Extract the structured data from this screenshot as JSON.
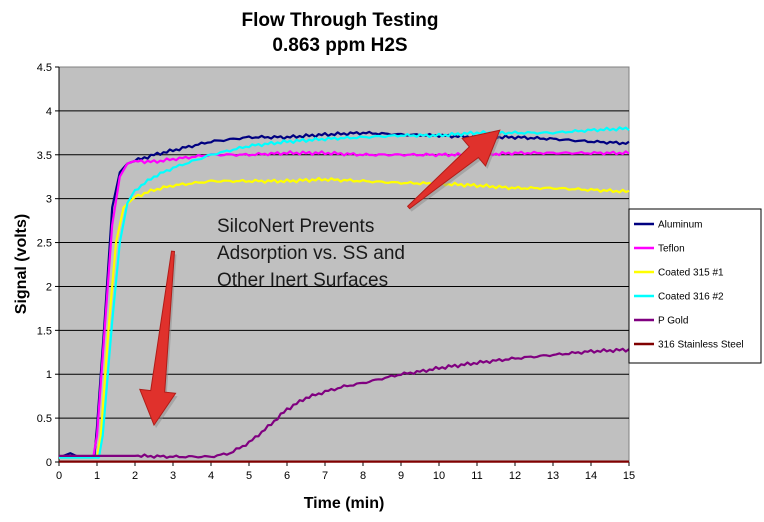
{
  "chart_data": {
    "type": "line",
    "title": "Flow Through Testing",
    "subtitle": "0.863 ppm H2S",
    "xlabel": "Time (min)",
    "ylabel": "Signal (volts)",
    "xlim": [
      0,
      15
    ],
    "ylim": [
      0,
      4.5
    ],
    "x_ticks": [
      "0",
      "1",
      "2",
      "3",
      "4",
      "5",
      "6",
      "7",
      "8",
      "9",
      "10",
      "11",
      "12",
      "13",
      "14",
      "15"
    ],
    "y_ticks": [
      "0",
      "0.5",
      "1",
      "1.5",
      "2",
      "2.5",
      "3",
      "3.5",
      "4",
      "4.5"
    ],
    "grid": true,
    "plot_background": "#c0c0c0",
    "legend_position": "right",
    "annotations": [
      {
        "lines": [
          "SilcoNert Prevents",
          "Adsorption vs. SS and",
          "Other Inert Surfaces"
        ]
      }
    ],
    "arrows": [
      {
        "from": [
          3.0,
          2.4
        ],
        "to": [
          2.5,
          0.42
        ],
        "color": "#e0312c"
      },
      {
        "from": [
          9.2,
          2.9
        ],
        "to": [
          11.6,
          3.78
        ],
        "color": "#e0312c"
      }
    ],
    "series": [
      {
        "name": "Aluminum",
        "color": "#000080",
        "points": [
          [
            0,
            0.05
          ],
          [
            0.3,
            0.1
          ],
          [
            0.5,
            0.06
          ],
          [
            0.93,
            0.06
          ],
          [
            1.0,
            0.4
          ],
          [
            1.2,
            1.6
          ],
          [
            1.4,
            2.9
          ],
          [
            1.6,
            3.3
          ],
          [
            1.8,
            3.4
          ],
          [
            2.0,
            3.43
          ],
          [
            2.5,
            3.5
          ],
          [
            3,
            3.55
          ],
          [
            4,
            3.65
          ],
          [
            5,
            3.7
          ],
          [
            6,
            3.7
          ],
          [
            7,
            3.73
          ],
          [
            8,
            3.75
          ],
          [
            9,
            3.73
          ],
          [
            10,
            3.72
          ],
          [
            11,
            3.7
          ],
          [
            12,
            3.7
          ],
          [
            13,
            3.68
          ],
          [
            14,
            3.65
          ],
          [
            15,
            3.63
          ]
        ]
      },
      {
        "name": "Teflon",
        "color": "#ff00ff",
        "points": [
          [
            0,
            0.05
          ],
          [
            0.9,
            0.05
          ],
          [
            1.0,
            0.3
          ],
          [
            1.2,
            1.5
          ],
          [
            1.4,
            2.7
          ],
          [
            1.6,
            3.25
          ],
          [
            1.8,
            3.4
          ],
          [
            2.0,
            3.43
          ],
          [
            2.5,
            3.42
          ],
          [
            3,
            3.45
          ],
          [
            4,
            3.5
          ],
          [
            5,
            3.5
          ],
          [
            6,
            3.52
          ],
          [
            7,
            3.52
          ],
          [
            8,
            3.5
          ],
          [
            9,
            3.5
          ],
          [
            10,
            3.5
          ],
          [
            11,
            3.5
          ],
          [
            12,
            3.52
          ],
          [
            13,
            3.52
          ],
          [
            14,
            3.52
          ],
          [
            15,
            3.52
          ]
        ]
      },
      {
        "name": "Coated 315 #1",
        "color": "#ffff00",
        "points": [
          [
            0,
            0.05
          ],
          [
            1.0,
            0.05
          ],
          [
            1.1,
            0.3
          ],
          [
            1.3,
            1.5
          ],
          [
            1.5,
            2.5
          ],
          [
            1.7,
            2.9
          ],
          [
            2.0,
            3.02
          ],
          [
            2.5,
            3.1
          ],
          [
            3,
            3.15
          ],
          [
            4,
            3.2
          ],
          [
            5,
            3.2
          ],
          [
            6,
            3.2
          ],
          [
            7,
            3.22
          ],
          [
            8,
            3.2
          ],
          [
            9,
            3.18
          ],
          [
            10,
            3.17
          ],
          [
            11,
            3.15
          ],
          [
            12,
            3.12
          ],
          [
            13,
            3.12
          ],
          [
            14,
            3.1
          ],
          [
            15,
            3.08
          ]
        ]
      },
      {
        "name": "Coated 316 #2",
        "color": "#00ffff",
        "points": [
          [
            0,
            0.05
          ],
          [
            1.05,
            0.05
          ],
          [
            1.15,
            0.3
          ],
          [
            1.4,
            1.6
          ],
          [
            1.6,
            2.5
          ],
          [
            1.8,
            2.95
          ],
          [
            2.0,
            3.1
          ],
          [
            2.5,
            3.25
          ],
          [
            3,
            3.35
          ],
          [
            4,
            3.5
          ],
          [
            5,
            3.6
          ],
          [
            6,
            3.65
          ],
          [
            7,
            3.68
          ],
          [
            8,
            3.7
          ],
          [
            9,
            3.72
          ],
          [
            10,
            3.72
          ],
          [
            11,
            3.75
          ],
          [
            12,
            3.75
          ],
          [
            13,
            3.75
          ],
          [
            14,
            3.78
          ],
          [
            15,
            3.8
          ]
        ]
      },
      {
        "name": "P Gold",
        "color": "#800080",
        "points": [
          [
            0,
            0.07
          ],
          [
            1,
            0.07
          ],
          [
            2,
            0.07
          ],
          [
            3,
            0.06
          ],
          [
            4,
            0.06
          ],
          [
            4.5,
            0.1
          ],
          [
            5,
            0.22
          ],
          [
            5.5,
            0.4
          ],
          [
            6,
            0.6
          ],
          [
            6.5,
            0.73
          ],
          [
            7,
            0.8
          ],
          [
            7.5,
            0.86
          ],
          [
            8,
            0.9
          ],
          [
            8.5,
            0.95
          ],
          [
            9,
            1.0
          ],
          [
            9.5,
            1.03
          ],
          [
            10,
            1.07
          ],
          [
            11,
            1.13
          ],
          [
            12,
            1.18
          ],
          [
            13,
            1.22
          ],
          [
            14,
            1.26
          ],
          [
            15,
            1.28
          ]
        ]
      },
      {
        "name": "316 Stainless Steel",
        "color": "#800000",
        "points": [
          [
            0,
            0.005
          ],
          [
            15,
            0.005
          ]
        ]
      }
    ]
  }
}
